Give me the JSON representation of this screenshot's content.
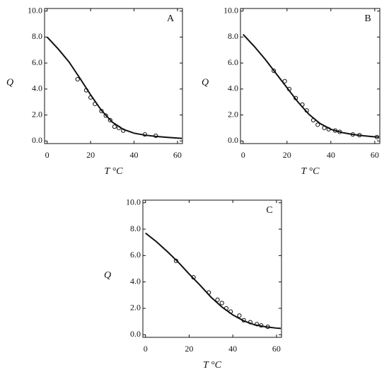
{
  "chart_data": [
    {
      "type": "scatter",
      "label": "A",
      "x_label": "T  °C",
      "y_label": "Q",
      "xlim": [
        -1.2,
        62.3
      ],
      "ylim": [
        -0.2,
        10.2
      ],
      "xticks": [
        0,
        20,
        40,
        60
      ],
      "yticks": [
        {
          "value": 0,
          "label": "0.0"
        },
        {
          "value": 2,
          "label": "2.0"
        },
        {
          "value": 4,
          "label": "4.0"
        },
        {
          "value": 6,
          "label": "6.0"
        },
        {
          "value": 8,
          "label": "8.0"
        },
        {
          "value": 10,
          "label": "10.0"
        }
      ],
      "series": [
        {
          "style": "markers",
          "color": "#111111",
          "x": [
            14,
            18,
            20,
            22,
            25,
            27,
            29,
            31,
            33,
            35,
            45,
            50
          ],
          "values": [
            4.75,
            3.9,
            3.35,
            2.85,
            2.3,
            1.95,
            1.6,
            1.1,
            1.0,
            0.8,
            0.5,
            0.4
          ]
        },
        {
          "style": "line",
          "color": "#111111",
          "x": [
            0,
            5,
            10,
            15,
            20,
            25,
            30,
            35,
            40,
            45,
            50,
            55,
            60,
            62
          ],
          "values": [
            8.0,
            7.1,
            6.1,
            4.85,
            3.55,
            2.35,
            1.45,
            0.9,
            0.6,
            0.45,
            0.35,
            0.28,
            0.22,
            0.2
          ]
        }
      ]
    },
    {
      "type": "scatter",
      "label": "B",
      "x_label": "T  °C",
      "y_label": "Q",
      "xlim": [
        -1.2,
        62.3
      ],
      "ylim": [
        -0.2,
        10.2
      ],
      "xticks": [
        0,
        20,
        40,
        60
      ],
      "yticks": [
        {
          "value": 0,
          "label": "0.0"
        },
        {
          "value": 2,
          "label": "2.0"
        },
        {
          "value": 4,
          "label": "4.0"
        },
        {
          "value": 6,
          "label": "6.0"
        },
        {
          "value": 8,
          "label": "8.0"
        },
        {
          "value": 10,
          "label": "10.0"
        }
      ],
      "series": [
        {
          "style": "markers",
          "color": "#111111",
          "x": [
            14,
            19,
            21,
            24,
            27,
            29,
            32,
            34,
            37,
            39,
            42,
            44,
            50,
            53,
            61
          ],
          "values": [
            5.4,
            4.6,
            4.0,
            3.3,
            2.8,
            2.35,
            1.6,
            1.25,
            1.0,
            0.9,
            0.8,
            0.7,
            0.5,
            0.45,
            0.3
          ]
        },
        {
          "style": "line",
          "color": "#111111",
          "x": [
            0,
            5,
            10,
            15,
            20,
            25,
            30,
            35,
            40,
            45,
            50,
            55,
            60,
            62
          ],
          "values": [
            8.2,
            7.3,
            6.3,
            5.2,
            4.1,
            3.0,
            2.05,
            1.35,
            0.9,
            0.65,
            0.5,
            0.4,
            0.32,
            0.3
          ]
        }
      ]
    },
    {
      "type": "scatter",
      "label": "C",
      "x_label": "T  °C",
      "y_label": "Q",
      "xlim": [
        -1.2,
        62.3
      ],
      "ylim": [
        -0.2,
        10.2
      ],
      "xticks": [
        0,
        20,
        40,
        60
      ],
      "yticks": [
        {
          "value": 0,
          "label": "0.0"
        },
        {
          "value": 2,
          "label": "2.0"
        },
        {
          "value": 4,
          "label": "4.0"
        },
        {
          "value": 6,
          "label": "6.0"
        },
        {
          "value": 8,
          "label": "8.0"
        },
        {
          "value": 10,
          "label": "10.0"
        }
      ],
      "series": [
        {
          "style": "markers",
          "color": "#111111",
          "x": [
            14,
            22,
            29,
            33,
            35,
            37,
            39,
            43,
            45,
            48,
            51,
            53,
            56
          ],
          "values": [
            5.6,
            4.35,
            3.2,
            2.65,
            2.4,
            2.0,
            1.75,
            1.45,
            1.1,
            0.95,
            0.8,
            0.7,
            0.6
          ]
        },
        {
          "style": "line",
          "color": "#111111",
          "x": [
            0,
            5,
            10,
            15,
            20,
            25,
            30,
            35,
            40,
            45,
            50,
            55,
            60,
            62
          ],
          "values": [
            7.7,
            7.05,
            6.3,
            5.5,
            4.6,
            3.75,
            2.85,
            2.1,
            1.5,
            1.05,
            0.75,
            0.6,
            0.5,
            0.48
          ]
        }
      ]
    }
  ]
}
